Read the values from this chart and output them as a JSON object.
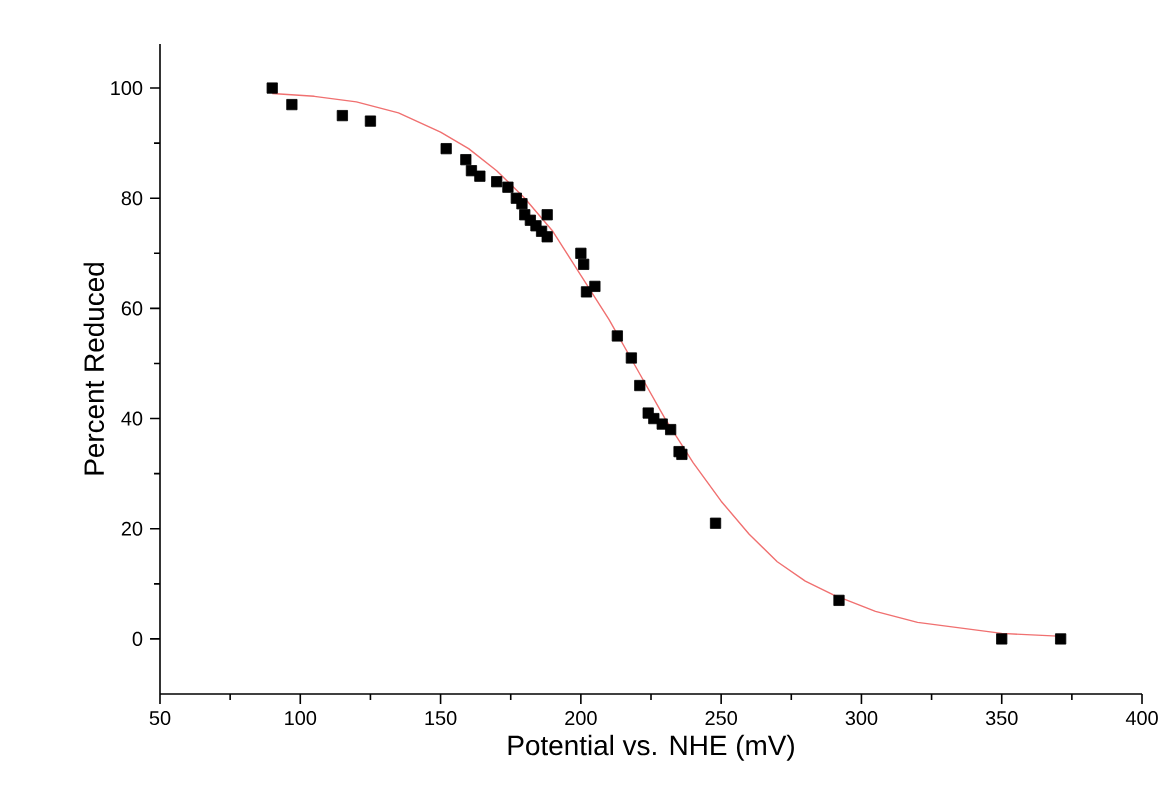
{
  "chart_data": {
    "type": "scatter",
    "xlabel": "Potential vs. NHE (mV)",
    "ylabel": "Percent Reduced",
    "xlim": [
      50,
      400
    ],
    "ylim": [
      -10,
      108
    ],
    "xticks": [
      50,
      100,
      150,
      200,
      250,
      300,
      350,
      400
    ],
    "yticks": [
      0,
      20,
      40,
      60,
      80,
      100
    ],
    "series": [
      {
        "marker": "square",
        "color": "#000000",
        "x": [
          90,
          97,
          115,
          125,
          152,
          159,
          161,
          164,
          170,
          174,
          177,
          179,
          180,
          182,
          184,
          186,
          188,
          188,
          200,
          201,
          202,
          205,
          213,
          218,
          221,
          224,
          226,
          229,
          232,
          235,
          236,
          248,
          292,
          350,
          371
        ],
        "values": [
          100,
          97,
          95,
          94,
          89,
          87,
          85,
          84,
          83,
          82,
          80,
          79,
          77,
          76,
          75,
          74,
          73,
          77,
          70,
          68,
          63,
          64,
          55,
          51,
          46,
          41,
          40,
          39,
          38,
          34,
          33.5,
          21,
          7,
          0,
          0
        ]
      },
      {
        "type": "line",
        "marker": "none",
        "color": "#f07070",
        "x": [
          90,
          105,
          120,
          135,
          150,
          160,
          170,
          180,
          190,
          200,
          210,
          220,
          230,
          240,
          250,
          260,
          270,
          280,
          290,
          305,
          320,
          335,
          350,
          370
        ],
        "values": [
          99,
          98.5,
          97.5,
          95.5,
          92,
          89,
          85,
          80,
          74,
          66,
          58,
          49,
          40,
          32,
          25,
          19,
          14,
          10.5,
          8,
          5,
          3,
          2,
          1,
          0.5
        ]
      }
    ]
  }
}
